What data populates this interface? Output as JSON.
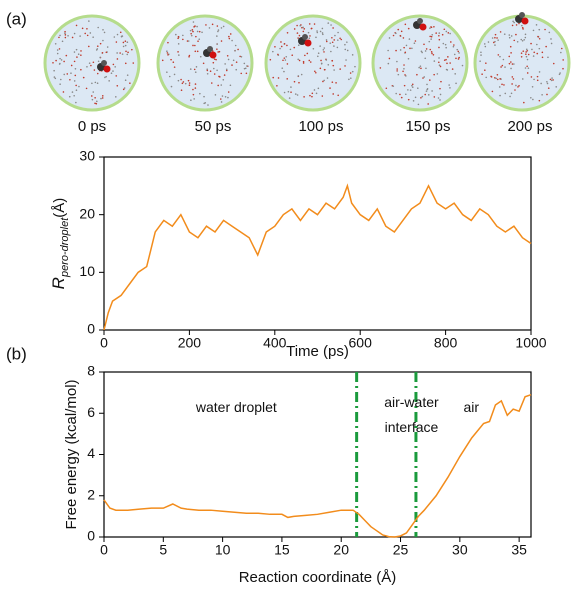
{
  "panel_labels": [
    "(a)",
    "(b)"
  ],
  "snapshots": [
    "0 ps",
    "50 ps",
    "100 ps",
    "150 ps",
    "200 ps"
  ],
  "chart_data": [
    {
      "type": "line",
      "xlabel": "Time (ps)",
      "ylabel": {
        "main": "R",
        "sub": "pero-droplet",
        "unit": "(Å)"
      },
      "color": "#f28c1c",
      "x": [
        0,
        10,
        20,
        40,
        60,
        80,
        100,
        120,
        140,
        160,
        180,
        200,
        220,
        240,
        260,
        280,
        300,
        320,
        340,
        360,
        380,
        400,
        420,
        440,
        460,
        480,
        500,
        520,
        540,
        560,
        570,
        580,
        600,
        620,
        640,
        660,
        680,
        700,
        720,
        740,
        760,
        780,
        800,
        820,
        840,
        860,
        880,
        900,
        920,
        940,
        960,
        980,
        1000
      ],
      "values": [
        0,
        3,
        5,
        6,
        8,
        10,
        11,
        17,
        19,
        18,
        20,
        17,
        16,
        18,
        17,
        19,
        18,
        17,
        16,
        13,
        17,
        18,
        20,
        21,
        19,
        21,
        20,
        22,
        21,
        23,
        25,
        22,
        20,
        19,
        21,
        18,
        17,
        19,
        21,
        22,
        25,
        22,
        21,
        22,
        20,
        19,
        21,
        20,
        18,
        17,
        18,
        16,
        15
      ],
      "xlim": [
        0,
        1000
      ],
      "xticks": [
        0,
        200,
        400,
        600,
        800,
        1000
      ],
      "ylim": [
        0,
        30
      ],
      "yticks": [
        0,
        10,
        20,
        30
      ]
    },
    {
      "type": "line",
      "xlabel": "Reaction coordinate (Å)",
      "ylabel": "Free energy (kcal/mol)",
      "color": "#f28c1c",
      "x": [
        0,
        0.5,
        1,
        2,
        3,
        4,
        5,
        5.8,
        6.5,
        7,
        8,
        9,
        10,
        11,
        12,
        13,
        14,
        15,
        15.5,
        16,
        17,
        18,
        19,
        20,
        21,
        21.5,
        22,
        22.5,
        23,
        23.5,
        24,
        24.5,
        25,
        25.5,
        26,
        26.5,
        27,
        28,
        29,
        30,
        31,
        32,
        32.5,
        33,
        33.5,
        34,
        34.5,
        35,
        35.5,
        36
      ],
      "values": [
        1.8,
        1.4,
        1.3,
        1.3,
        1.35,
        1.4,
        1.4,
        1.6,
        1.4,
        1.35,
        1.3,
        1.3,
        1.25,
        1.2,
        1.15,
        1.15,
        1.1,
        1.1,
        0.95,
        1.0,
        1.05,
        1.1,
        1.2,
        1.3,
        1.3,
        1.1,
        0.8,
        0.5,
        0.3,
        0.1,
        0.02,
        0,
        0.05,
        0.2,
        0.6,
        1.0,
        1.3,
        2.0,
        2.9,
        3.9,
        4.8,
        5.5,
        5.6,
        6.4,
        6.6,
        5.9,
        6.2,
        6.1,
        6.8,
        6.9
      ],
      "xlim": [
        0,
        36
      ],
      "xticks": [
        0,
        5,
        10,
        15,
        20,
        25,
        30,
        35
      ],
      "ylim": [
        0,
        8
      ],
      "yticks": [
        0,
        2,
        4,
        6,
        8
      ],
      "vlines": [
        21.3,
        26.3
      ],
      "vline_color": "#1a9a3c",
      "annotations": [
        "water droplet",
        "air-water",
        "interface",
        "air"
      ]
    }
  ]
}
